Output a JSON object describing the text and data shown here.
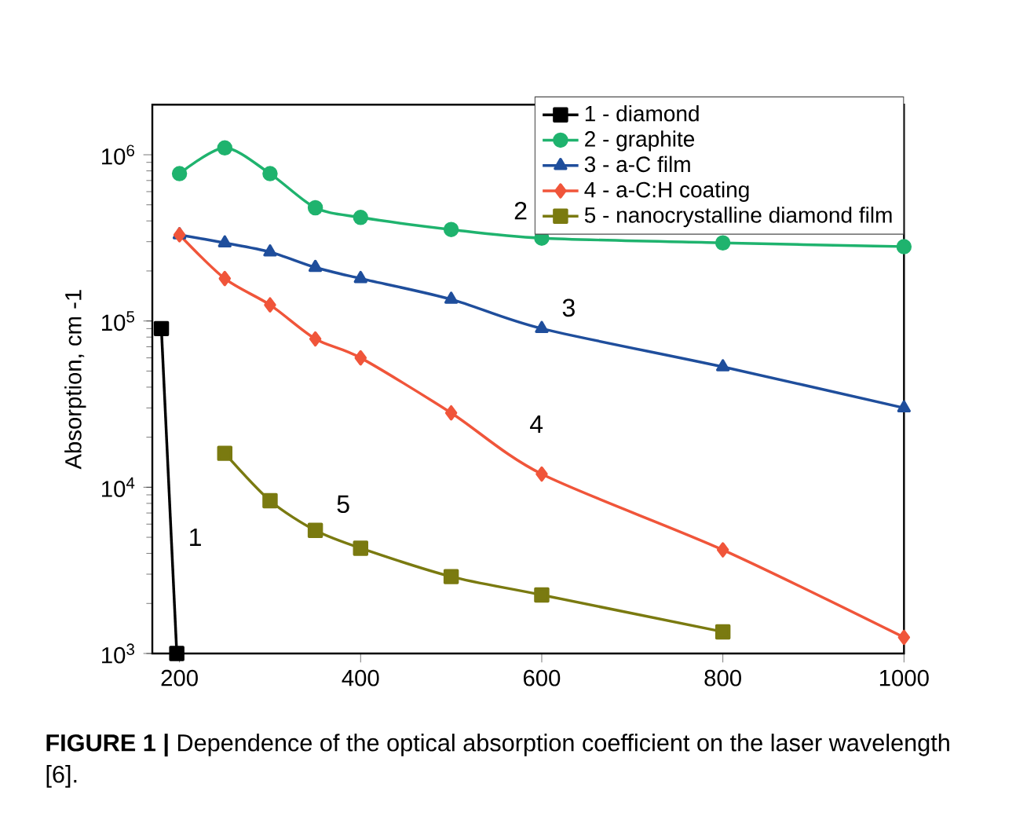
{
  "chart_data": {
    "type": "line",
    "ylabel": "Absorption, cm -1",
    "log": "y",
    "xlim": [
      170,
      1000
    ],
    "xticks": [
      200,
      400,
      600,
      800,
      1000
    ],
    "ylim": [
      1000,
      2000000
    ],
    "yticks": [
      {
        "value": 1000,
        "label": "10$^{3}$"
      },
      {
        "value": 10000,
        "label": "10$^{4}$"
      },
      {
        "value": 100000,
        "label": "10$^{5}$"
      },
      {
        "value": 1000000,
        "label": "10$^{6}$"
      }
    ],
    "legend": "top right",
    "grid": false,
    "line_style": "solid",
    "series": [
      {
        "name": "1 - diamond",
        "color": "#000000",
        "marker": "square",
        "x": [
          180,
          197
        ],
        "values": [
          90000,
          1000
        ]
      },
      {
        "name": "2 - graphite",
        "color": "#1fb36e",
        "marker": "circle",
        "x": [
          200,
          250,
          300,
          350,
          400,
          500,
          600,
          800,
          1000
        ],
        "values": [
          770000,
          1100000,
          770000,
          480000,
          420000,
          355000,
          315000,
          295000,
          280000
        ]
      },
      {
        "name": "3 - a-C film",
        "color": "#1f4e9c",
        "marker": "triangle",
        "x": [
          200,
          250,
          300,
          350,
          400,
          500,
          600,
          800,
          1000
        ],
        "values": [
          330000,
          295000,
          260000,
          210000,
          180000,
          135000,
          90000,
          53000,
          30000
        ]
      },
      {
        "name": "4 - a-C:H coating",
        "color": "#f0553a",
        "marker": "diamond",
        "x": [
          200,
          250,
          300,
          350,
          400,
          500,
          600,
          800,
          1000
        ],
        "values": [
          330000,
          180000,
          125000,
          78000,
          60000,
          28000,
          12000,
          4200,
          1250
        ]
      },
      {
        "name": "5 - nanocrystalline diamond film",
        "color": "#7a7a10",
        "marker": "square",
        "x": [
          250,
          300,
          350,
          400,
          500,
          600,
          800
        ],
        "values": [
          16000,
          8300,
          5500,
          4300,
          2900,
          2250,
          1350
        ]
      }
    ],
    "annotations": [
      "1",
      "2",
      "3",
      "4",
      "5",
      "**FIGURE 1 |** Dependence of the optical absorption coefficient on the laser wavelength [6]."
    ]
  }
}
